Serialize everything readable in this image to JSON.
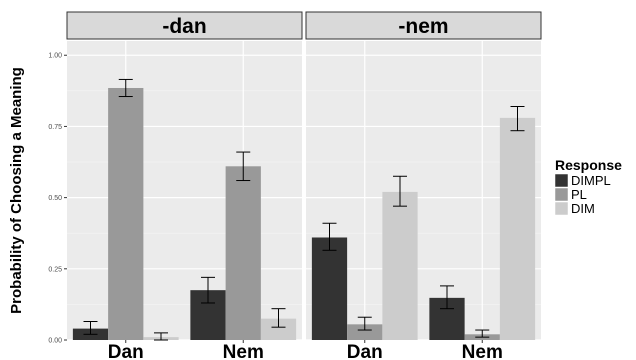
{
  "chart_data": {
    "type": "bar",
    "ylabel": "Probability of Choosing a Meaning",
    "xlabel": "",
    "ylim": [
      0,
      1.05
    ],
    "y_ticks": [
      0,
      0.25,
      0.5,
      0.75,
      1.0
    ],
    "y_tick_labels": [
      "0.00",
      "0.25",
      "0.50",
      "0.75",
      "1.00"
    ],
    "grid": true,
    "legend": {
      "title": "Response",
      "position": "right",
      "entries": [
        {
          "name": "DIMPL",
          "color": "#333333"
        },
        {
          "name": "PL",
          "color": "#999999"
        },
        {
          "name": "DIM",
          "color": "#cccccc"
        }
      ]
    },
    "categories": [
      "Dan",
      "Nem"
    ],
    "panels": [
      {
        "title": "-dan",
        "series": [
          {
            "name": "DIMPL",
            "values": [
              0.04,
              0.175
            ],
            "err_low": [
              0.02,
              0.13
            ],
            "err_high": [
              0.065,
              0.22
            ]
          },
          {
            "name": "PL",
            "values": [
              0.885,
              0.61
            ],
            "err_low": [
              0.855,
              0.56
            ],
            "err_high": [
              0.915,
              0.66
            ]
          },
          {
            "name": "DIM",
            "values": [
              0.01,
              0.075
            ],
            "err_low": [
              0.0,
              0.045
            ],
            "err_high": [
              0.025,
              0.11
            ]
          }
        ]
      },
      {
        "title": "-nem",
        "series": [
          {
            "name": "DIMPL",
            "values": [
              0.36,
              0.148
            ],
            "err_low": [
              0.315,
              0.11
            ],
            "err_high": [
              0.41,
              0.19
            ]
          },
          {
            "name": "PL",
            "values": [
              0.055,
              0.02
            ],
            "err_low": [
              0.035,
              0.01
            ],
            "err_high": [
              0.08,
              0.035
            ]
          },
          {
            "name": "DIM",
            "values": [
              0.52,
              0.78
            ],
            "err_low": [
              0.47,
              0.735
            ],
            "err_high": [
              0.575,
              0.82
            ]
          }
        ]
      }
    ]
  }
}
